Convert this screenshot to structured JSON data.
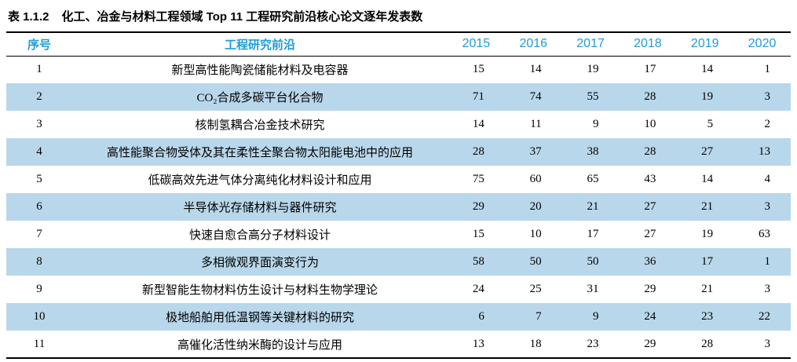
{
  "title": {
    "label": "表 1.1.2",
    "text": "化工、冶金与材料工程领域 Top 11 工程研究前沿核心论文逐年发表数"
  },
  "table": {
    "headers": {
      "no": "序号",
      "front": "工程研究前沿",
      "years": [
        "2015",
        "2016",
        "2017",
        "2018",
        "2019",
        "2020"
      ]
    },
    "rows": [
      {
        "no": "1",
        "front": "新型高性能陶瓷储能材料及电容器",
        "values": [
          15,
          14,
          19,
          17,
          14,
          1
        ]
      },
      {
        "no": "2",
        "front": "CO₂合成多碳平台化合物",
        "values": [
          71,
          74,
          55,
          28,
          19,
          3
        ]
      },
      {
        "no": "3",
        "front": "核制氢耦合冶金技术研究",
        "values": [
          14,
          11,
          9,
          10,
          5,
          2
        ]
      },
      {
        "no": "4",
        "front": "高性能聚合物受体及其在柔性全聚合物太阳能电池中的应用",
        "values": [
          28,
          37,
          38,
          28,
          27,
          13
        ]
      },
      {
        "no": "5",
        "front": "低碳高效先进气体分离纯化材料设计和应用",
        "values": [
          75,
          60,
          65,
          43,
          14,
          4
        ]
      },
      {
        "no": "6",
        "front": "半导体光存储材料与器件研究",
        "values": [
          29,
          20,
          21,
          27,
          21,
          3
        ]
      },
      {
        "no": "7",
        "front": "快速自愈合高分子材料设计",
        "values": [
          15,
          10,
          17,
          27,
          19,
          63
        ]
      },
      {
        "no": "8",
        "front": "多相微观界面演变行为",
        "values": [
          58,
          50,
          50,
          36,
          17,
          1
        ]
      },
      {
        "no": "9",
        "front": "新型智能生物材料仿生设计与材料生物学理论",
        "values": [
          24,
          25,
          31,
          29,
          21,
          3
        ]
      },
      {
        "no": "10",
        "front": "极地船舶用低温钢等关键材料的研究",
        "values": [
          6,
          7,
          9,
          24,
          23,
          22
        ]
      },
      {
        "no": "11",
        "front": "高催化活性纳米酶的设计与应用",
        "values": [
          13,
          18,
          23,
          29,
          28,
          3
        ]
      }
    ]
  },
  "colors": {
    "header_text": "#1e9cd7",
    "band_row": "#b9d7ea",
    "title_text": "#000000",
    "border": "#000000"
  }
}
